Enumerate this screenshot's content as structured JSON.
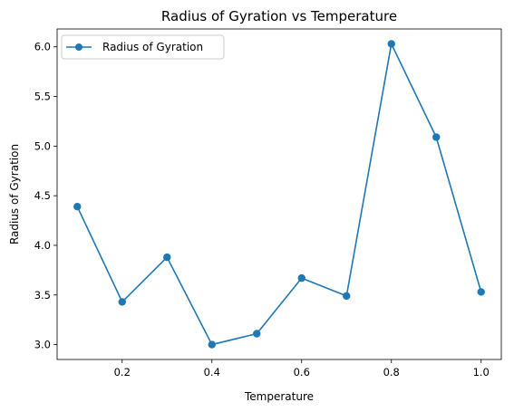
{
  "chart_data": {
    "type": "line",
    "title": "Radius of Gyration vs Temperature",
    "xlabel": "Temperature",
    "ylabel": "Radius of Gyration",
    "x": [
      0.1,
      0.2,
      0.3,
      0.4,
      0.5,
      0.6,
      0.7,
      0.8,
      0.9,
      1.0
    ],
    "series": [
      {
        "name": "Radius of Gyration",
        "values": [
          4.39,
          3.43,
          3.88,
          3.0,
          3.11,
          3.67,
          3.49,
          6.03,
          5.09,
          3.53
        ],
        "color": "#1f77b4",
        "marker": "circle"
      }
    ],
    "xlim": [
      0.055,
      1.045
    ],
    "ylim": [
      2.85,
      6.18
    ],
    "xticks": [
      0.2,
      0.4,
      0.6,
      0.8,
      1.0
    ],
    "xtick_labels": [
      "0.2",
      "0.4",
      "0.6",
      "0.8",
      "1.0"
    ],
    "yticks": [
      3.0,
      3.5,
      4.0,
      4.5,
      5.0,
      5.5,
      6.0
    ],
    "ytick_labels": [
      "3.0",
      "3.5",
      "4.0",
      "4.5",
      "5.0",
      "5.5",
      "6.0"
    ],
    "grid": false,
    "legend_position": "upper-left"
  }
}
